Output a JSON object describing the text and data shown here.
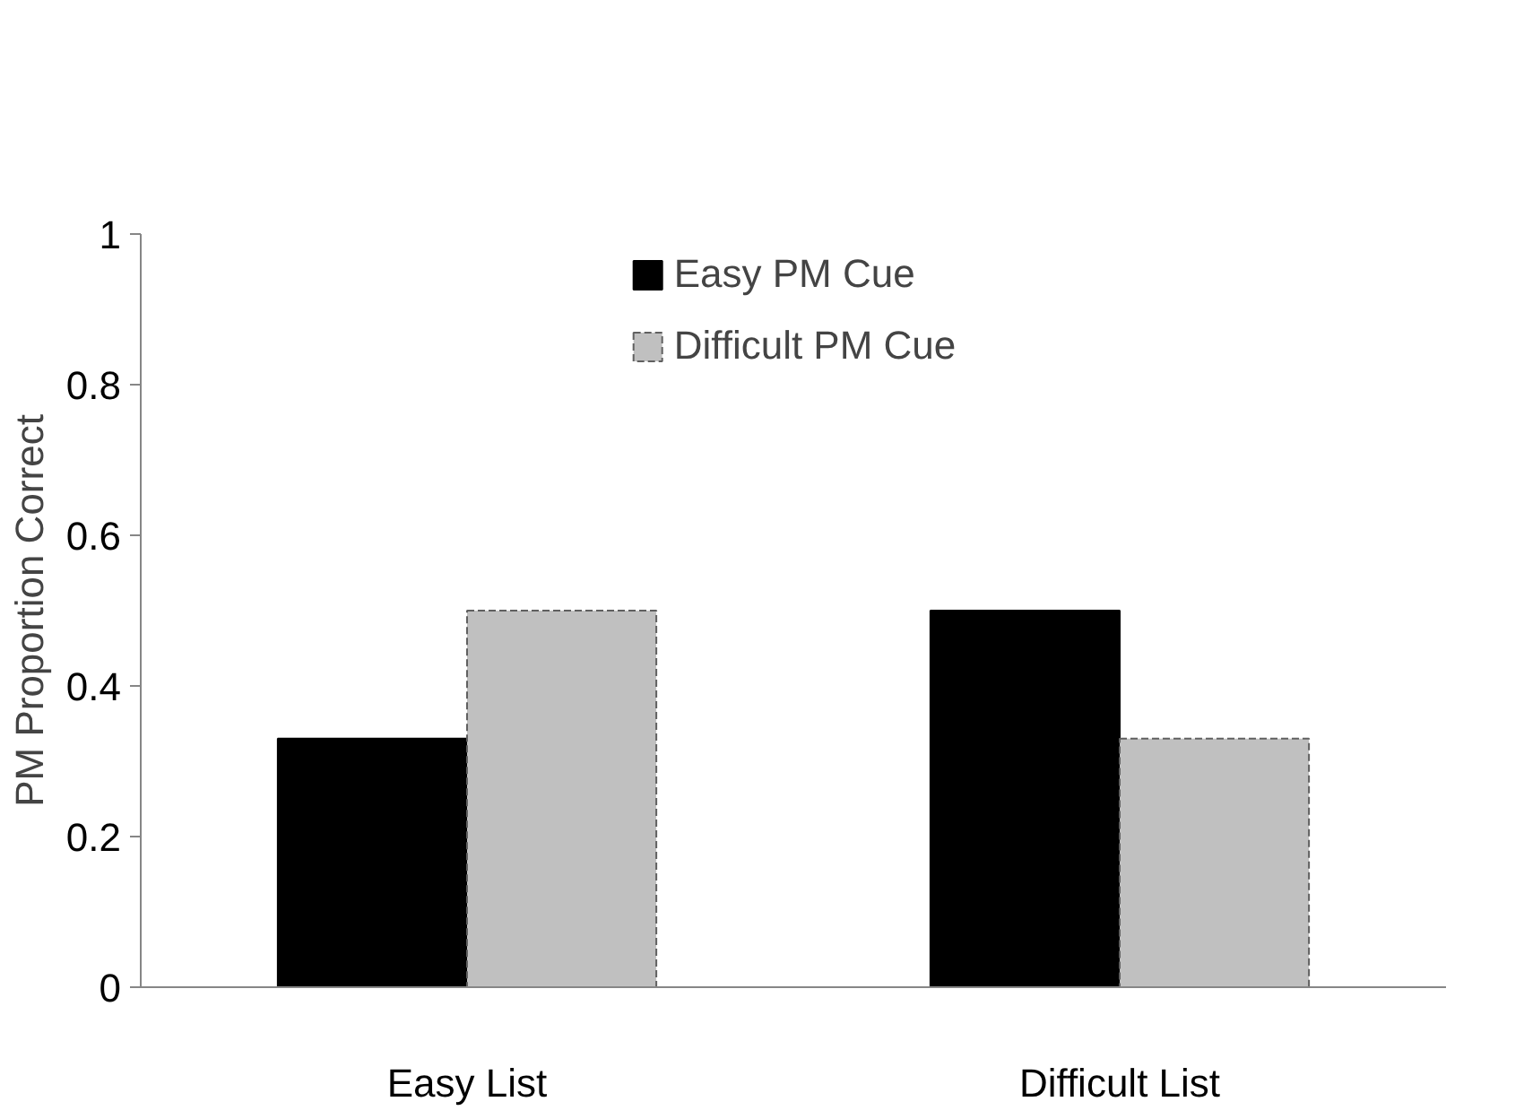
{
  "chart_data": {
    "type": "bar",
    "ylabel": "PM Proportion Correct",
    "categories": [
      "Easy List",
      "Difficult List"
    ],
    "series": [
      {
        "name": "Easy PM Cue",
        "color": "#000000",
        "values": [
          0.33,
          0.5
        ]
      },
      {
        "name": "Difficult PM Cue",
        "color": "#c0c0c0",
        "values": [
          0.5,
          0.33
        ],
        "line_style": "dashed"
      }
    ],
    "ylim": [
      0,
      1
    ],
    "yticks": [
      0,
      0.2,
      0.4,
      0.6,
      0.8,
      1
    ],
    "grid": false,
    "legend": "top"
  }
}
